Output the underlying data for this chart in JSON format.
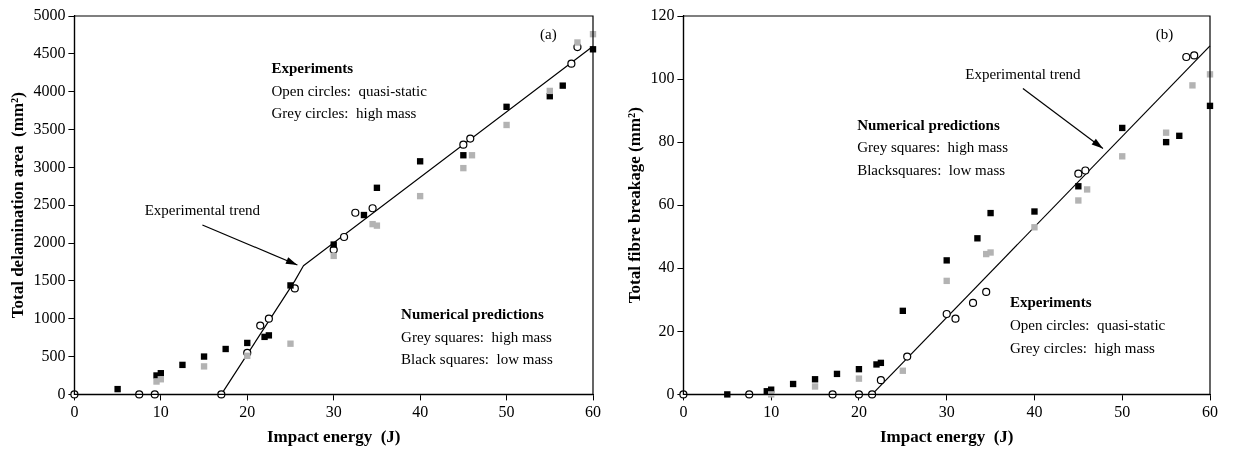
{
  "chart_data": [
    {
      "type": "scatter",
      "xlabel": "Impact energy  (J)",
      "ylabel": "Total delamination area  (mm²)",
      "xlim": [
        0,
        60
      ],
      "xticks": [
        0,
        10,
        20,
        30,
        40,
        50,
        60
      ],
      "ylim": [
        0,
        5000
      ],
      "yticks": [
        0,
        500,
        1000,
        1500,
        2000,
        2500,
        3000,
        3500,
        4000,
        4500,
        5000
      ],
      "grid": false,
      "legend": false,
      "series": [
        {
          "type": "line",
          "marker": "none",
          "color": "#000000",
          "x": [
            17,
            25.5,
            26.5,
            60
          ],
          "values": [
            0,
            1500,
            1700,
            4600
          ]
        },
        {
          "marker": "square",
          "color": "#b3b3b3",
          "x": [
            9.5,
            10,
            15,
            20,
            25,
            30,
            34.5,
            35,
            40,
            45,
            46,
            50,
            55,
            58.2,
            60
          ],
          "values": [
            170,
            200,
            370,
            510,
            670,
            1830,
            2250,
            2230,
            2620,
            2990,
            3160,
            3560,
            4010,
            4650,
            4760
          ]
        },
        {
          "marker": "square",
          "color": "#000000",
          "x": [
            5,
            9.5,
            10,
            12.5,
            15,
            17.5,
            20,
            22,
            22.5,
            25,
            30,
            33.5,
            35,
            40,
            45,
            50,
            55,
            56.5,
            60
          ],
          "values": [
            70,
            250,
            280,
            390,
            500,
            600,
            680,
            760,
            780,
            1440,
            1980,
            2370,
            2730,
            3080,
            3160,
            3800,
            3940,
            4080,
            4560
          ]
        },
        {
          "marker": "circle",
          "color": "#000000",
          "x": [
            0,
            7.5,
            9.3,
            17,
            20,
            21.5,
            22.5,
            25.5,
            30,
            31.2,
            32.5,
            34.5,
            45,
            45.8,
            57.5,
            58.2
          ],
          "values": [
            0,
            0,
            0,
            0,
            550,
            910,
            1000,
            1400,
            1910,
            2080,
            2400,
            2460,
            3300,
            3380,
            4370,
            4590
          ]
        }
      ],
      "annotations": [
        "(a)",
        "Experiments",
        "Open circles:  quasi-static",
        "Grey circles:  high mass",
        "Numerical predictions",
        "Grey squares:  high mass",
        "Black squares:  low mass",
        {
          "text": "Experimental trend",
          "x": 25.8,
          "y": 1710
        }
      ]
    },
    {
      "type": "scatter",
      "xlabel": "Impact energy  (J)",
      "ylabel": "Total fibre breakage (mm²)",
      "xlim": [
        0,
        60
      ],
      "xticks": [
        0,
        10,
        20,
        30,
        40,
        50,
        60
      ],
      "ylim": [
        0,
        120
      ],
      "yticks": [
        0,
        20,
        40,
        60,
        80,
        100,
        120
      ],
      "grid": false,
      "legend": false,
      "series": [
        {
          "type": "line",
          "marker": "none",
          "color": "#000000",
          "x": [
            21.5,
            60
          ],
          "values": [
            0,
            110.5
          ]
        },
        {
          "marker": "square",
          "color": "#b3b3b3",
          "x": [
            10,
            15,
            20,
            25,
            30,
            34.5,
            35,
            40,
            45,
            46,
            50,
            55,
            58,
            60
          ],
          "values": [
            0,
            2.5,
            5,
            7.5,
            36,
            44.5,
            45,
            53,
            61.5,
            65,
            75.5,
            83,
            98,
            101.5
          ]
        },
        {
          "marker": "square",
          "color": "#000000",
          "x": [
            5,
            9.5,
            10,
            12.5,
            15,
            17.5,
            20,
            22,
            22.5,
            25,
            30,
            33.5,
            35,
            40,
            45,
            50,
            55,
            56.5,
            60
          ],
          "values": [
            0,
            1,
            1.5,
            3.3,
            4.8,
            6.5,
            8,
            9.5,
            10,
            26.5,
            42.5,
            49.5,
            57.5,
            58,
            66,
            84.5,
            80,
            82,
            91.5
          ]
        },
        {
          "marker": "circle",
          "color": "#000000",
          "x": [
            0,
            7.5,
            17,
            20,
            21.5,
            22.5,
            25.5,
            30,
            31,
            33,
            34.5,
            45,
            45.8,
            57.3,
            58.2
          ],
          "values": [
            0,
            0,
            0,
            0,
            0,
            4.5,
            12,
            25.5,
            24,
            29,
            32.5,
            70,
            71,
            107,
            107.5
          ]
        }
      ],
      "annotations": [
        "(b)",
        "Numerical predictions",
        "Grey squares:  high mass",
        "Blacksquares:  low mass",
        "Experiments",
        "Open circles:  quasi-static",
        "Grey circles:  high mass",
        {
          "text": "Experimental trend",
          "x": 47.8,
          "y": 78
        }
      ]
    }
  ]
}
